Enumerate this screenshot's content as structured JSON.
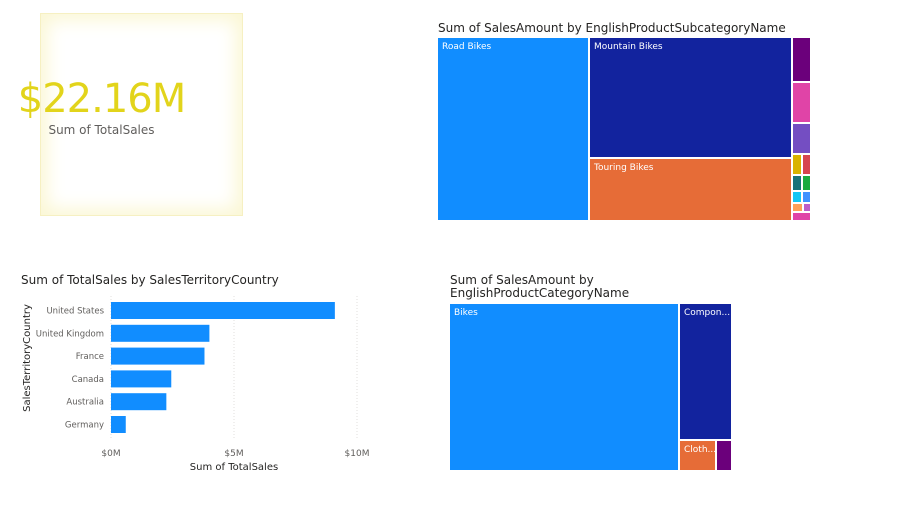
{
  "kpi": {
    "value": "$22.16M",
    "label": "Sum of TotalSales"
  },
  "colors": {
    "blue": "#118dff",
    "navy": "#12239e",
    "orange": "#e66c37",
    "purple": "#6b007b",
    "pink": "#e044a7",
    "violet": "#744ec2",
    "yellow": "#d9b300",
    "red": "#d64550",
    "teal": "#197278",
    "green": "#1aab40",
    "lightblue": "#15c6f4",
    "kpi": "#e2d41b"
  },
  "chart_data": [
    {
      "type": "treemap",
      "title": "Sum of SalesAmount by EnglishProductSubcategoryName",
      "items": [
        {
          "label": "Road Bikes",
          "value": 14.52,
          "color": "#118dff"
        },
        {
          "label": "Mountain Bikes",
          "value": 9.95,
          "color": "#12239e"
        },
        {
          "label": "Touring Bikes",
          "value": 3.84,
          "color": "#e66c37"
        },
        {
          "label": "",
          "value": 0.65,
          "color": "#6b007b"
        },
        {
          "label": "",
          "value": 0.62,
          "color": "#e044a7"
        },
        {
          "label": "",
          "value": 0.45,
          "color": "#744ec2"
        },
        {
          "label": "",
          "value": 0.12,
          "color": "#d9b300"
        },
        {
          "label": "",
          "value": 0.11,
          "color": "#d64550"
        },
        {
          "label": "",
          "value": 0.1,
          "color": "#197278"
        },
        {
          "label": "",
          "value": 0.09,
          "color": "#1aab40"
        },
        {
          "label": "",
          "value": 0.08,
          "color": "#15c6f4"
        },
        {
          "label": "",
          "value": 0.08,
          "color": "#4092ff"
        },
        {
          "label": "",
          "value": 0.06,
          "color": "#ffa058"
        },
        {
          "label": "",
          "value": 0.05,
          "color": "#be5dc9"
        },
        {
          "label": "",
          "value": 0.05,
          "color": "#e044a7"
        }
      ]
    },
    {
      "type": "bar",
      "orientation": "horizontal",
      "title": "Sum of TotalSales by SalesTerritoryCountry",
      "xlabel": "Sum of TotalSales",
      "ylabel": "SalesTerritoryCountry",
      "categories": [
        "United States",
        "United Kingdom",
        "France",
        "Canada",
        "Australia",
        "Germany"
      ],
      "values": [
        9.1,
        4.0,
        3.8,
        2.45,
        2.25,
        0.6
      ],
      "xticks": [
        "$0M",
        "$5M",
        "$10M"
      ],
      "xlim": [
        0,
        10
      ],
      "grid": true,
      "color": "#118dff"
    },
    {
      "type": "treemap",
      "title": "Sum of SalesAmount by\nEnglishProductCategoryName",
      "title_line1": "Sum of SalesAmount by",
      "title_line2": "EnglishProductCategoryName",
      "items": [
        {
          "label": "Bikes",
          "value": 28.3,
          "color": "#118dff"
        },
        {
          "label": "Compon...",
          "value": 6.5,
          "color": "#12239e"
        },
        {
          "label": "Cloth...",
          "value": 1.2,
          "color": "#e66c37"
        },
        {
          "label": "",
          "value": 0.55,
          "color": "#6b007b"
        }
      ]
    }
  ]
}
